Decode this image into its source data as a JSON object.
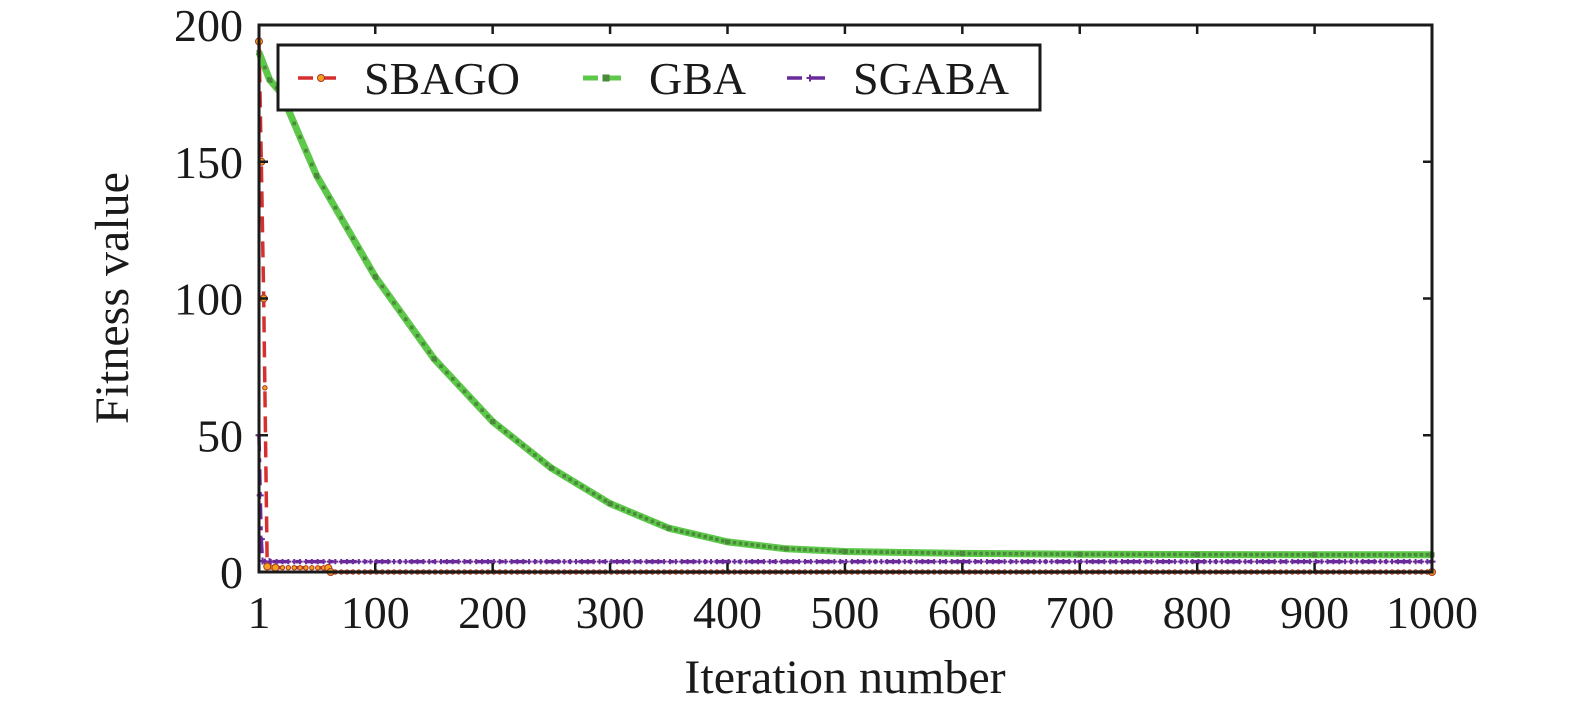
{
  "chart_data": {
    "type": "line",
    "title": "",
    "xlabel": "Iteration number",
    "ylabel": "Fitness value",
    "xlim": [
      1,
      1000
    ],
    "ylim": [
      0,
      200
    ],
    "x_ticks": [
      1,
      100,
      200,
      300,
      400,
      500,
      600,
      700,
      800,
      900,
      1000
    ],
    "y_ticks": [
      0,
      50,
      100,
      150,
      200
    ],
    "grid": false,
    "legend_position": "top-left",
    "series": [
      {
        "name": "SBAGO",
        "color": "#d62f2f",
        "marker_color": "#f2a01e",
        "line_style": "dashed",
        "marker": "circle",
        "points": [
          [
            1,
            194
          ],
          [
            3,
            150
          ],
          [
            5,
            100
          ],
          [
            8,
            2
          ],
          [
            15,
            1.6
          ],
          [
            60,
            1.5
          ],
          [
            62,
            0
          ],
          [
            1000,
            0
          ]
        ]
      },
      {
        "name": "GBA",
        "color": "#5ec84a",
        "marker_color": "#4a8a3a",
        "line_style": "dashed",
        "marker": "square",
        "points": [
          [
            1,
            190
          ],
          [
            10,
            180
          ],
          [
            20,
            175
          ],
          [
            50,
            145
          ],
          [
            100,
            108
          ],
          [
            150,
            78
          ],
          [
            200,
            55
          ],
          [
            250,
            38
          ],
          [
            300,
            25
          ],
          [
            350,
            16
          ],
          [
            400,
            11
          ],
          [
            450,
            8.5
          ],
          [
            500,
            7.5
          ],
          [
            600,
            6.8
          ],
          [
            700,
            6.5
          ],
          [
            800,
            6.4
          ],
          [
            900,
            6.3
          ],
          [
            1000,
            6.3
          ]
        ]
      },
      {
        "name": "SGABA",
        "color": "#6a2a9a",
        "marker_color": "#6a2a9a",
        "line_style": "dashdot",
        "marker": "plus",
        "points": [
          [
            1,
            50
          ],
          [
            2,
            28
          ],
          [
            3,
            12
          ],
          [
            4,
            4
          ],
          [
            10,
            3.8
          ],
          [
            1000,
            3.8
          ]
        ]
      }
    ]
  }
}
